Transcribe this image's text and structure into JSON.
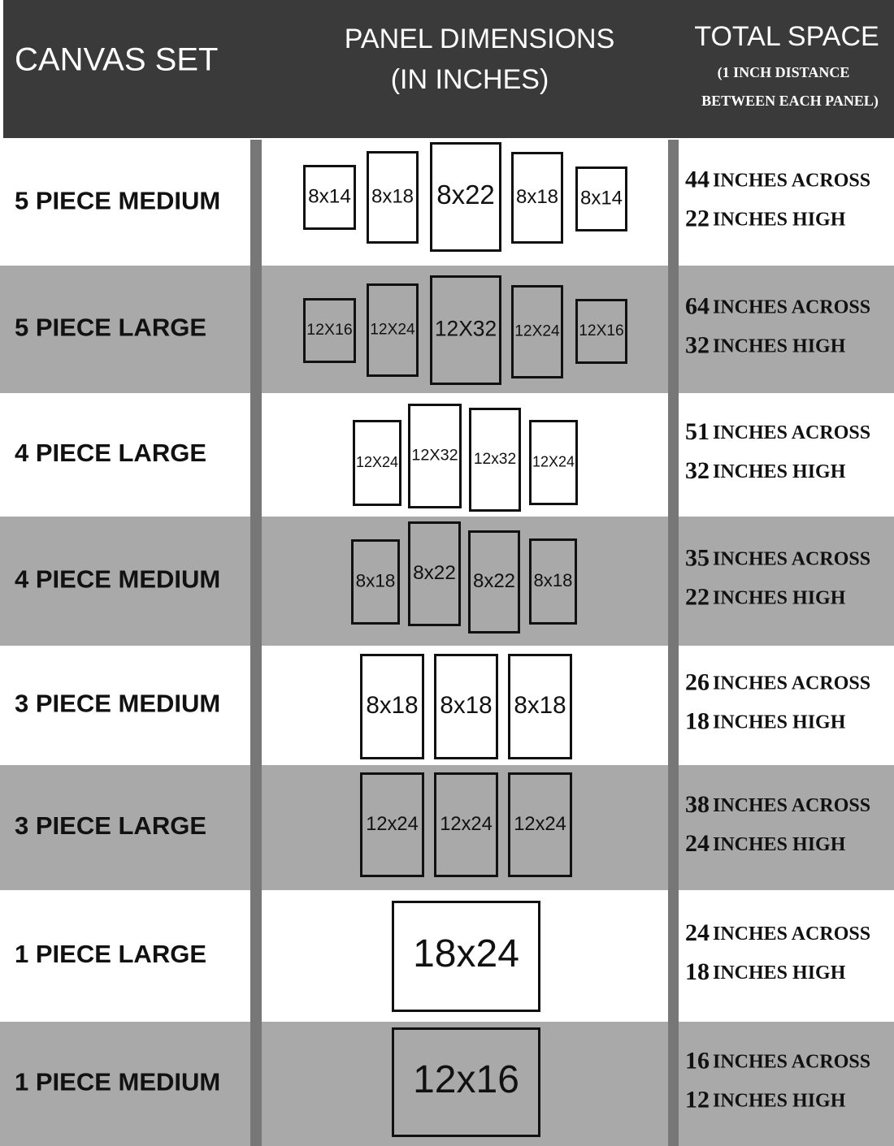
{
  "header": {
    "col1": "CANVAS SET",
    "col2": [
      "PANEL DIMENSIONS",
      "(IN INCHES)"
    ],
    "col3": "TOTAL SPACE",
    "col3_note": [
      "(1 INCH DISTANCE",
      "BETWEEN EACH PANEL)"
    ]
  },
  "rows": [
    {
      "set": "5 PIECE MEDIUM",
      "panels": [
        "8x14",
        "8x18",
        "8x22",
        "8x18",
        "8x14"
      ],
      "across": 44,
      "across_label": "INCHES ACROSS",
      "high": 22,
      "high_label": "INCHES HIGH"
    },
    {
      "set": "5 PIECE LARGE",
      "panels": [
        "12X16",
        "12X24",
        "12X32",
        "12X24",
        "12X16"
      ],
      "across": 64,
      "across_label": "INCHES ACROSS",
      "high": 32,
      "high_label": "INCHES HIGH"
    },
    {
      "set": "4 PIECE LARGE",
      "panels": [
        "12X24",
        "12X32",
        "12x32",
        "12X24"
      ],
      "across": 51,
      "across_label": "INCHES ACROSS",
      "high": 32,
      "high_label": "INCHES HIGH"
    },
    {
      "set": "4 PIECE MEDIUM",
      "panels": [
        "8x18",
        "8x22",
        "8x22",
        "8x18"
      ],
      "across": 35,
      "across_label": "INCHES ACROSS",
      "high": 22,
      "high_label": "INCHES HIGH"
    },
    {
      "set": "3 PIECE MEDIUM",
      "panels": [
        "8x18",
        "8x18",
        "8x18"
      ],
      "across": 26,
      "across_label": "INCHES ACROSS",
      "high": 18,
      "high_label": "INCHES HIGH"
    },
    {
      "set": "3 PIECE LARGE",
      "panels": [
        "12x24",
        "12x24",
        "12x24"
      ],
      "across": 38,
      "across_label": "INCHES ACROSS",
      "high": 24,
      "high_label": "INCHES HIGH"
    },
    {
      "set": "1 PIECE LARGE",
      "panels": [
        "18x24"
      ],
      "across": 24,
      "across_label": "INCHES ACROSS",
      "high": 18,
      "high_label": "INCHES HIGH"
    },
    {
      "set": "1 PIECE MEDIUM",
      "panels": [
        "12x16"
      ],
      "across": 16,
      "across_label": "INCHES ACROSS",
      "high": 12,
      "high_label": "INCHES HIGH"
    }
  ]
}
